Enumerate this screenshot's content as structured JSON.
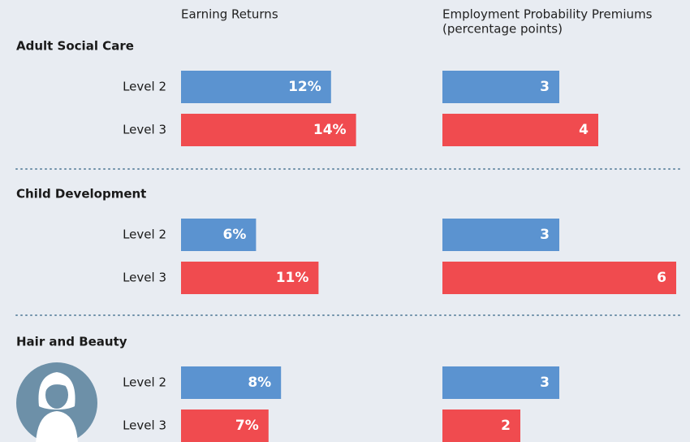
{
  "chart_data": {
    "type": "grouped-hbar",
    "sections": [
      "Adult Social Care",
      "Child Development",
      "Hair and Beauty"
    ],
    "levels": [
      "Level 2",
      "Level 3"
    ],
    "panels": [
      {
        "title": "Earning Returns",
        "series": [
          {
            "name": "Level 2",
            "color": "#5b93d0",
            "values": [
              12,
              6,
              8
            ],
            "value_labels": [
              "12%",
              "6%",
              "8%"
            ]
          },
          {
            "name": "Level 3",
            "color": "#f04b4f",
            "values": [
              14,
              11,
              7
            ],
            "value_labels": [
              "14%",
              "11%",
              "7%"
            ]
          }
        ]
      },
      {
        "title": "Employment Probability Premiums",
        "subtitle": "(percentage points)",
        "series": [
          {
            "name": "Level 2",
            "color": "#5b93d0",
            "values": [
              3,
              3,
              3
            ]
          },
          {
            "name": "Level 3",
            "color": "#f04b4f",
            "values": [
              4,
              6,
              2
            ]
          }
        ]
      }
    ]
  }
}
